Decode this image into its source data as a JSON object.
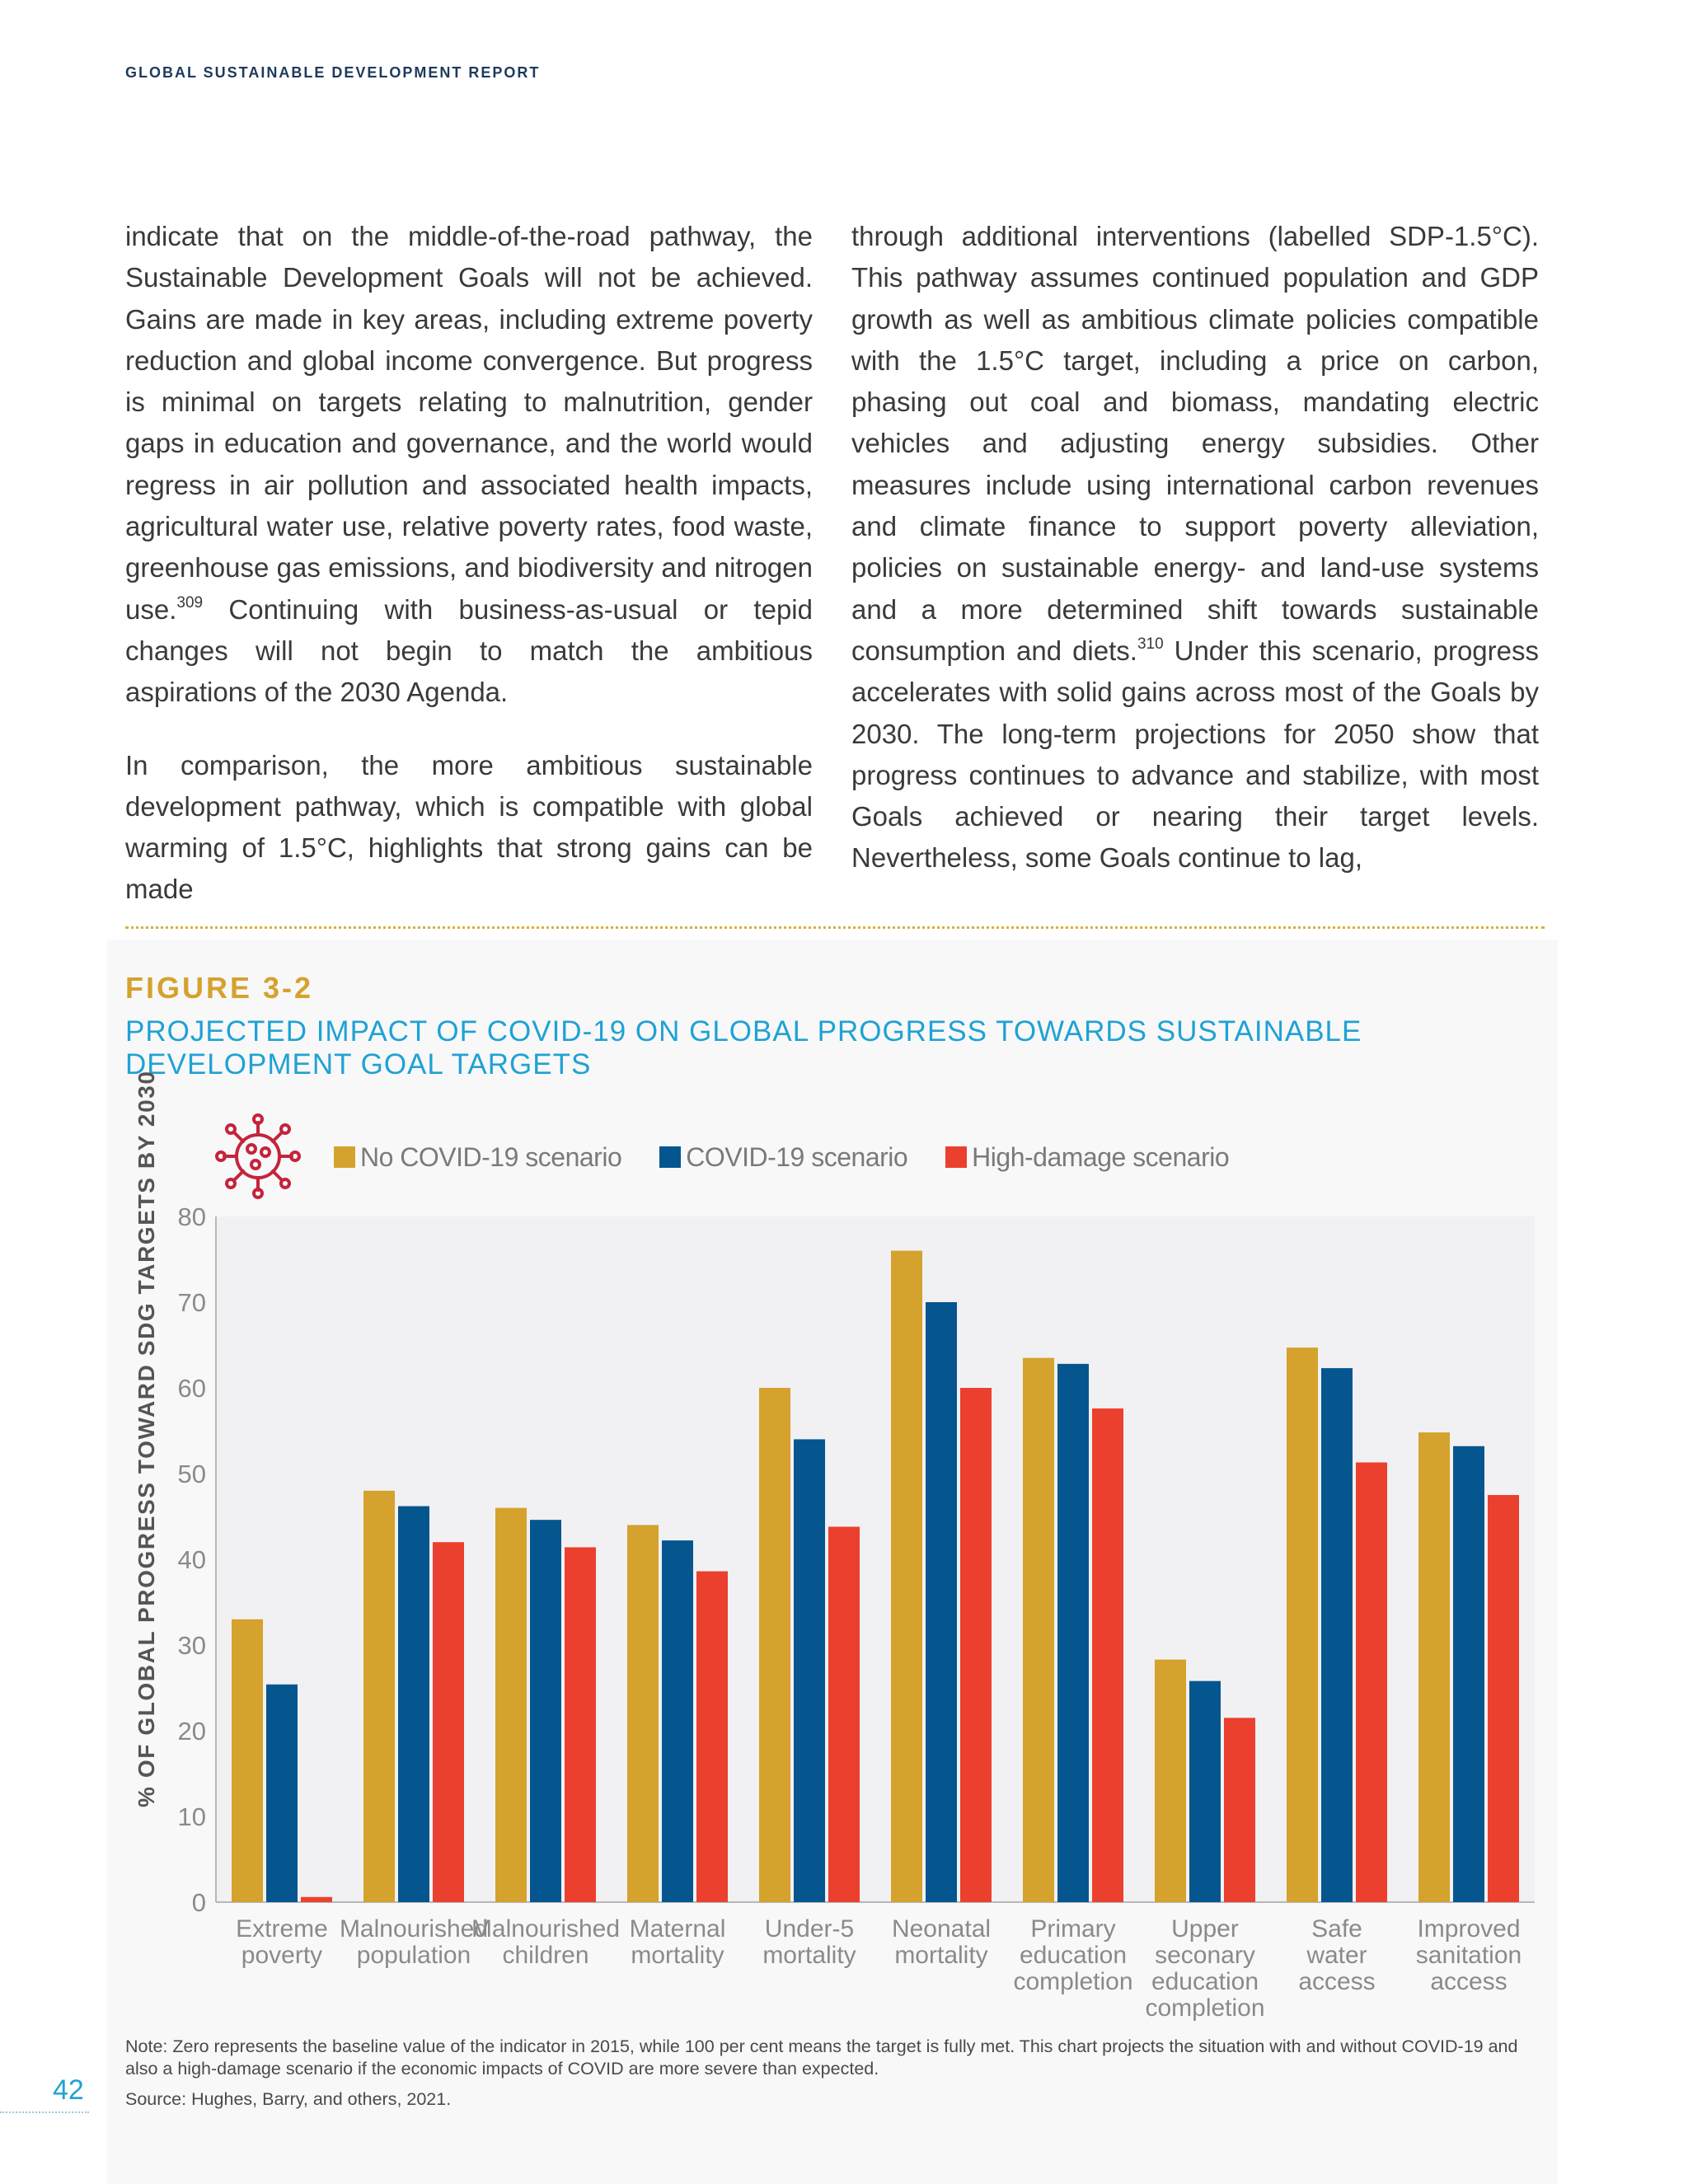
{
  "header": {
    "running_head": "GLOBAL SUSTAINABLE DEVELOPMENT REPORT"
  },
  "body_text": {
    "left_p1": "indicate that on the middle-of-the-road pathway, the Sustainable Development Goals will not be achieved. Gains are made in key areas, including extreme poverty reduction and global income convergence. But progress is minimal on targets relating to malnutrition, gender gaps in education and governance, and the world would regress in air pollution and associated health impacts, agricultural water use, relative poverty rates, food waste, greenhouse gas emissions, and biodiversity and nitrogen use.",
    "left_p1_ref": "309",
    "left_p1_tail": " Continuing with business-as-usual or tepid changes will not begin to match the ambitious aspirations of the 2030 Agenda.",
    "left_p2": "In comparison, the more ambitious sustainable development pathway, which is compatible with global warming of 1.5°C, highlights that strong gains can be made",
    "right_p1": "through additional interventions (labelled SDP-1.5°C). This pathway assumes continued population and GDP growth as well as ambitious climate policies compatible with the 1.5°C target, including a price on carbon, phasing out coal and biomass, mandating electric vehicles and adjusting energy subsidies. Other measures include using international carbon revenues and climate finance to support poverty alleviation, policies on sustainable energy- and land-use systems and a more determined shift towards sustainable consumption and diets.",
    "right_p1_ref": "310",
    "right_p1_tail": " Under this scenario, progress accelerates with solid gains across most of the Goals by 2030. The long-term projections for 2050 show that progress continues to advance and stabilize, with most Goals achieved or nearing their target levels. Nevertheless, some Goals continue to lag,"
  },
  "figure": {
    "label": "FIGURE 3-2",
    "title": "PROJECTED IMPACT OF COVID-19 ON GLOBAL PROGRESS TOWARDS SUSTAINABLE DEVELOPMENT GOAL TARGETS",
    "icon": "virus-icon",
    "note": "Note: Zero represents the baseline value of the indicator in 2015, while 100 per cent means the target is fully met. This chart projects the situation with and without COVID-19 and also a high-damage scenario if the economic impacts of COVID are more severe than expected.",
    "source": "Source: Hughes, Barry, and others, 2021."
  },
  "colors": {
    "accent_gold": "#d4a22d",
    "accent_blue": "#1fa2d4",
    "plot_bg": "#f1f1f3"
  },
  "chart_data": {
    "type": "bar",
    "title": "PROJECTED IMPACT OF COVID-19 ON GLOBAL PROGRESS TOWARDS SUSTAINABLE DEVELOPMENT GOAL TARGETS",
    "xlabel": "",
    "ylabel": "% OF GLOBAL PROGRESS TOWARD SDG TARGETS BY 2030",
    "ylim": [
      0,
      80
    ],
    "yticks": [
      0,
      10,
      20,
      30,
      40,
      50,
      60,
      70,
      80
    ],
    "grid": false,
    "legend_position": "top",
    "categories": [
      [
        "Extreme",
        "poverty"
      ],
      [
        "Malnourished",
        "population"
      ],
      [
        "Malnourished",
        "children"
      ],
      [
        "Maternal",
        "mortality"
      ],
      [
        "Under-5",
        "mortality"
      ],
      [
        "Neonatal",
        "mortality"
      ],
      [
        "Primary",
        "education",
        "completion"
      ],
      [
        "Upper",
        "seconary",
        "education",
        "completion"
      ],
      [
        "Safe",
        "water",
        "access"
      ],
      [
        "Improved",
        "sanitation",
        "access"
      ]
    ],
    "series": [
      {
        "name": "No COVID-19 scenario",
        "color": "#d4a22d",
        "values": [
          33,
          48,
          46,
          44,
          60,
          76,
          63.5,
          28.3,
          64.7,
          54.8
        ]
      },
      {
        "name": "COVID-19 scenario",
        "color": "#05568f",
        "values": [
          25.4,
          46.2,
          44.6,
          42.2,
          54,
          70,
          62.8,
          25.8,
          62.3,
          53.2
        ]
      },
      {
        "name": "High-damage scenario",
        "color": "#eb402d",
        "values": [
          0.6,
          42,
          41.4,
          38.6,
          43.8,
          60,
          57.6,
          21.5,
          51.3,
          47.5
        ]
      }
    ]
  },
  "footer": {
    "page_number": "42"
  }
}
